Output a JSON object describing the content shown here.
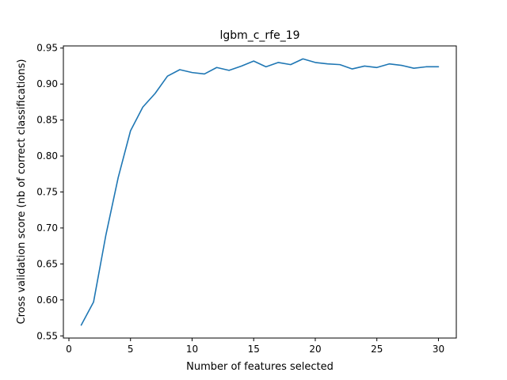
{
  "chart_data": {
    "type": "line",
    "title": "lgbm_c_rfe_19",
    "xlabel": "Number of features selected",
    "ylabel": "Cross validation score (nb of correct classifications)",
    "xlim": [
      -0.45,
      31.45
    ],
    "ylim": [
      0.547,
      0.953
    ],
    "xticks": [
      0,
      5,
      10,
      15,
      20,
      25,
      30
    ],
    "yticks": [
      0.55,
      0.6,
      0.65,
      0.7,
      0.75,
      0.8,
      0.85,
      0.9,
      0.95
    ],
    "xtick_labels": [
      "0",
      "5",
      "10",
      "15",
      "20",
      "25",
      "30"
    ],
    "ytick_labels": [
      "0.55",
      "0.60",
      "0.65",
      "0.70",
      "0.75",
      "0.80",
      "0.85",
      "0.90",
      "0.95"
    ],
    "grid": false,
    "color": "#1f77b4",
    "series": [
      {
        "x": [
          1,
          2,
          3,
          4,
          5,
          6,
          7,
          8,
          9,
          10,
          11,
          12,
          13,
          14,
          15,
          16,
          17,
          18,
          19,
          20,
          21,
          22,
          23,
          24,
          25,
          26,
          27,
          28,
          29,
          30
        ],
        "values": [
          0.565,
          0.597,
          0.69,
          0.77,
          0.835,
          0.868,
          0.887,
          0.911,
          0.92,
          0.916,
          0.914,
          0.923,
          0.919,
          0.925,
          0.932,
          0.924,
          0.93,
          0.927,
          0.935,
          0.93,
          0.928,
          0.927,
          0.921,
          0.925,
          0.923,
          0.928,
          0.926,
          0.922,
          0.924,
          0.924
        ]
      }
    ]
  }
}
